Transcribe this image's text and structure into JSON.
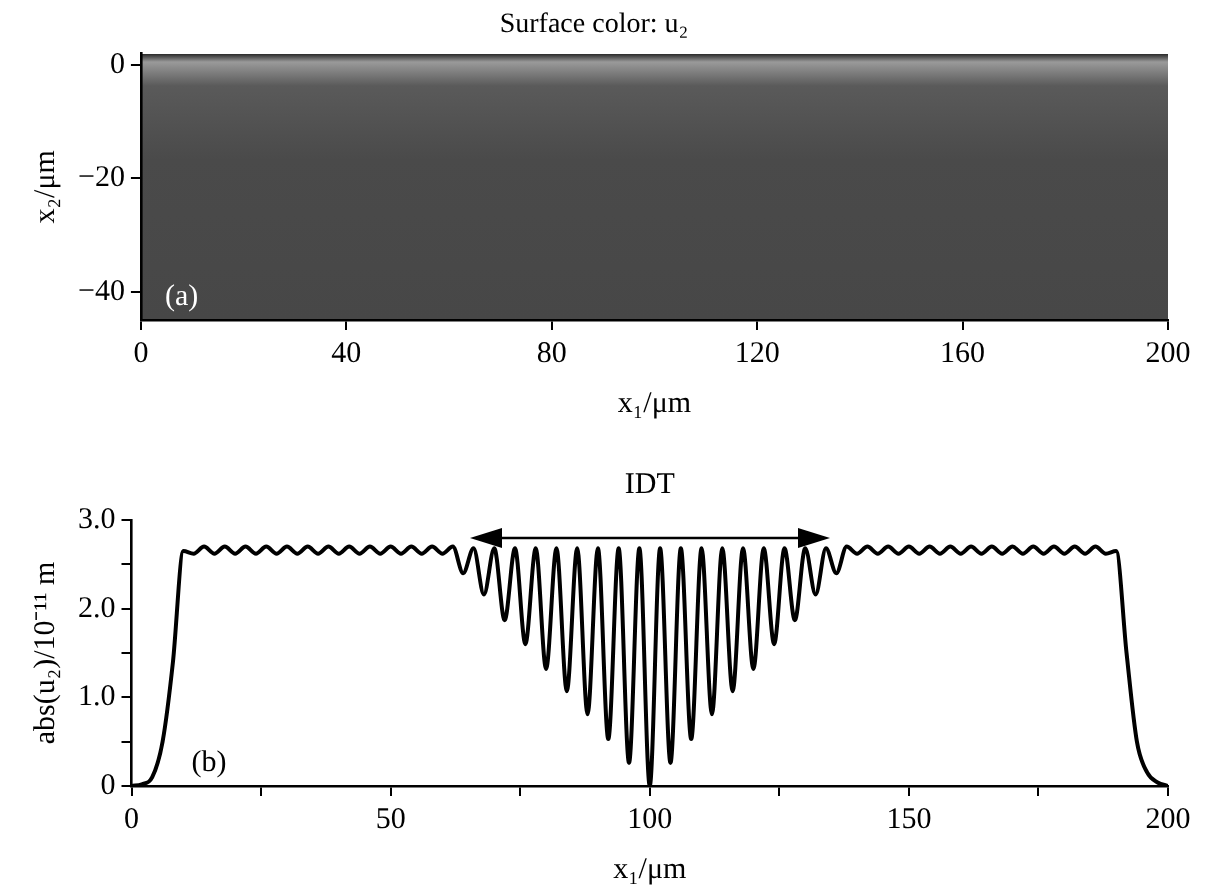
{
  "chart_data": [
    {
      "type": "scatter",
      "title": "Surface color: u₂",
      "xlabel": "x₁/μm",
      "ylabel": "x₂/μm",
      "annotations": [
        "(a)"
      ],
      "xlim": [
        0,
        200
      ],
      "xticks": [
        0,
        40,
        80,
        120,
        160,
        200
      ],
      "ylim": [
        -45,
        2
      ],
      "yticks": [
        0,
        {
          "value": -20,
          "label": "−20"
        },
        {
          "value": -40,
          "label": "−40"
        }
      ]
    },
    {
      "type": "line",
      "xlabel": "x₁/μm",
      "ylabel": "abs(u₂)/10⁻¹¹ m",
      "annotations": [
        "(b)",
        "IDT"
      ],
      "xlim": [
        0,
        200
      ],
      "xticks": [
        0,
        {
          "value": 25,
          "label": null
        },
        50,
        {
          "value": 75,
          "label": null
        },
        100,
        {
          "value": 125,
          "label": null
        },
        150,
        {
          "value": 175,
          "label": null
        },
        200
      ],
      "ylim": [
        0,
        3.0
      ],
      "yticks": [
        0,
        {
          "value": 0.5,
          "label": null
        },
        {
          "value": 1,
          "label": "1.0"
        },
        {
          "value": 1.5,
          "label": null
        },
        {
          "value": 2,
          "label": "2.0"
        },
        {
          "value": 2.5,
          "label": null
        },
        {
          "value": 3,
          "label": "3.0"
        }
      ],
      "series": [
        {
          "color": "#000000",
          "x": [
            0,
            2,
            4,
            6,
            8,
            10,
            12,
            14,
            16,
            18,
            20,
            22,
            24,
            26,
            28,
            30,
            32,
            34,
            36,
            38,
            40,
            42,
            44,
            46,
            48,
            50,
            52,
            54,
            56,
            58,
            60,
            62,
            64,
            66,
            68,
            70,
            72,
            74,
            76,
            78,
            80,
            82,
            84,
            86,
            88,
            90,
            92,
            94,
            96,
            98,
            100,
            102,
            104,
            106,
            108,
            110,
            112,
            114,
            116,
            118,
            120,
            122,
            124,
            126,
            128,
            130,
            132,
            134,
            136,
            138,
            140,
            142,
            144,
            146,
            148,
            150,
            152,
            154,
            156,
            158,
            160,
            162,
            164,
            166,
            168,
            170,
            172,
            174,
            176,
            178,
            180,
            182,
            184,
            186,
            188,
            190,
            192,
            194,
            196,
            198,
            200
          ],
          "values": [
            0,
            0.02,
            0.1,
            0.5,
            1.4,
            2.65,
            2.62,
            2.7,
            2.62,
            2.7,
            2.62,
            2.7,
            2.62,
            2.7,
            2.62,
            2.7,
            2.62,
            2.7,
            2.62,
            2.7,
            2.62,
            2.7,
            2.62,
            2.7,
            2.62,
            2.7,
            2.62,
            2.7,
            2.62,
            2.7,
            2.62,
            2.7,
            2.4,
            2.68,
            2.16,
            2.68,
            1.87,
            2.68,
            1.6,
            2.68,
            1.32,
            2.68,
            1.07,
            2.68,
            0.81,
            2.68,
            0.53,
            2.68,
            0.26,
            2.68,
            0,
            2.68,
            0.26,
            2.68,
            0.53,
            2.68,
            0.81,
            2.68,
            1.07,
            2.68,
            1.32,
            2.68,
            1.6,
            2.68,
            1.87,
            2.68,
            2.16,
            2.68,
            2.4,
            2.7,
            2.62,
            2.7,
            2.62,
            2.7,
            2.62,
            2.7,
            2.62,
            2.7,
            2.62,
            2.7,
            2.62,
            2.7,
            2.62,
            2.7,
            2.62,
            2.7,
            2.62,
            2.7,
            2.62,
            2.7,
            2.62,
            2.7,
            2.62,
            2.7,
            2.62,
            2.65,
            1.5,
            0.5,
            0.15,
            0.04,
            0
          ]
        }
      ]
    }
  ]
}
